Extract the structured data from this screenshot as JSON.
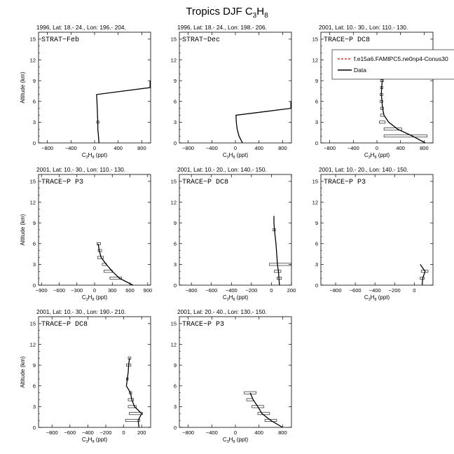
{
  "figure": {
    "title_main": "Tropics DJF C",
    "title_sub1": "3",
    "title_mid": "H",
    "title_sub2": "8"
  },
  "chart_data": [
    {
      "type": "line",
      "header": "1996, Lat: 18.- 24., Lon: 196.- 204.",
      "campaign": "STRAT−Feb",
      "xlabel": "C3H8 (ppt)",
      "ylabel": "Altitude (km)",
      "xlim": [
        -950,
        950
      ],
      "ylim": [
        0,
        16
      ],
      "xticks": [
        -800,
        -400,
        0,
        400,
        800
      ],
      "yticks": [
        0,
        3,
        6,
        9,
        12,
        15
      ],
      "series": [
        {
          "values": [
            [
              75,
              0
            ],
            [
              70,
              0.5
            ],
            [
              65,
              1
            ],
            [
              60,
              1.5
            ],
            [
              55,
              2
            ],
            [
              55,
              3
            ],
            [
              50,
              4
            ],
            [
              45,
              5
            ],
            [
              40,
              6
            ],
            [
              35,
              7
            ],
            [
              940,
              8
            ],
            [
              940,
              9
            ]
          ]
        }
      ],
      "errorbars": [
        {
          "y": 3,
          "low": 35,
          "high": 75
        }
      ]
    },
    {
      "type": "line",
      "header": "1996, Lat: 18.- 24., Lon: 198.- 206.",
      "campaign": "STRAT−Dec",
      "xlabel": "C3H8 (ppt)",
      "ylabel": "Altitude (km)",
      "xlim": [
        -950,
        950
      ],
      "ylim": [
        0,
        16
      ],
      "xticks": [
        -800,
        -400,
        0,
        400,
        800
      ],
      "yticks": [
        0,
        3,
        6,
        9,
        12,
        15
      ],
      "series": [
        {
          "values": [
            [
              120,
              0
            ],
            [
              90,
              0.5
            ],
            [
              60,
              1
            ],
            [
              30,
              2
            ],
            [
              15,
              3
            ],
            [
              10,
              4
            ],
            [
              940,
              5
            ],
            [
              940,
              6
            ]
          ]
        }
      ],
      "errorbars": []
    },
    {
      "type": "line",
      "header": "2001, Lat: 10.- 30., Lon: 110.- 130.",
      "campaign": "TRACE−P  DC8",
      "xlabel": "C3H8 (ppt)",
      "ylabel": "Altitude (km)",
      "xlim": [
        -950,
        950
      ],
      "ylim": [
        0,
        16
      ],
      "xticks": [
        -800,
        -400,
        0,
        400,
        800
      ],
      "yticks": [
        0,
        3,
        6,
        9,
        12,
        15
      ],
      "legend": {
        "position": "top-right",
        "entries": [
          {
            "label": "f.e15a6.FAMIPC5.ne0np4-Conus30",
            "color": "#e8322a",
            "dash": true
          },
          {
            "label": "Data",
            "color": "#000000",
            "dash": false
          }
        ]
      },
      "series": [
        {
          "values": [
            [
              820,
              0
            ],
            [
              600,
              1
            ],
            [
              350,
              2
            ],
            [
              200,
              3
            ],
            [
              120,
              4
            ],
            [
              95,
              5
            ],
            [
              85,
              6
            ],
            [
              75,
              7
            ],
            [
              80,
              8
            ],
            [
              90,
              9
            ],
            [
              70,
              10
            ]
          ]
        }
      ],
      "errorbars": [
        {
          "y": 1,
          "low": 120,
          "high": 850
        },
        {
          "y": 2,
          "low": 120,
          "high": 420
        },
        {
          "y": 3,
          "low": 40,
          "high": 140
        },
        {
          "y": 4,
          "low": 60,
          "high": 120
        },
        {
          "y": 5,
          "low": 60,
          "high": 110
        },
        {
          "y": 6,
          "low": 55,
          "high": 100
        },
        {
          "y": 7,
          "low": 55,
          "high": 100
        },
        {
          "y": 8,
          "low": 60,
          "high": 100
        },
        {
          "y": 9,
          "low": 60,
          "high": 110
        },
        {
          "y": 10,
          "low": 40,
          "high": 110
        }
      ]
    },
    {
      "type": "line",
      "header": "2001, Lat: 10.- 30., Lon: 110.- 130.",
      "campaign": "TRACE−P  P3",
      "xlabel": "C3H8 (ppt)",
      "ylabel": "Altitude (km)",
      "xlim": [
        -950,
        950
      ],
      "ylim": [
        0,
        16
      ],
      "xticks": [
        -900,
        -600,
        -300,
        0,
        300,
        600,
        900
      ],
      "yticks": [
        0,
        3,
        6,
        9,
        12,
        15
      ],
      "series": [
        {
          "values": [
            [
              650,
              0
            ],
            [
              420,
              1
            ],
            [
              300,
              2
            ],
            [
              200,
              3
            ],
            [
              110,
              4
            ],
            [
              80,
              5
            ],
            [
              60,
              6
            ]
          ]
        }
      ],
      "errorbars": [
        {
          "y": 1,
          "low": 260,
          "high": 460
        },
        {
          "y": 2,
          "low": 160,
          "high": 300
        },
        {
          "y": 3,
          "low": 130,
          "high": 200
        },
        {
          "y": 4,
          "low": 50,
          "high": 150
        },
        {
          "y": 5,
          "low": 60,
          "high": 120
        },
        {
          "y": 6,
          "low": 40,
          "high": 100
        }
      ]
    },
    {
      "type": "line",
      "header": "2001, Lat: 10.- 20., Lon: 140.- 150.",
      "campaign": "TRACE−P  DC8",
      "xlabel": "C3H8 (ppt)",
      "ylabel": "Altitude (km)",
      "xlim": [
        -920,
        200
      ],
      "ylim": [
        0,
        16
      ],
      "xticks": [
        -800,
        -600,
        -400,
        -200,
        0,
        200
      ],
      "yticks": [
        0,
        3,
        6,
        9,
        12,
        15
      ],
      "series": [
        {
          "values": [
            [
              80,
              0
            ],
            [
              75,
              1
            ],
            [
              70,
              2
            ],
            [
              60,
              3
            ],
            [
              50,
              5
            ],
            [
              45,
              6
            ],
            [
              30,
              8
            ],
            [
              25,
              9
            ],
            [
              25,
              10
            ]
          ]
        }
      ],
      "errorbars": [
        {
          "y": 1,
          "low": 55,
          "high": 100
        },
        {
          "y": 2,
          "low": 30,
          "high": 95
        },
        {
          "y": 3,
          "low": -20,
          "high": 200
        },
        {
          "y": 8,
          "low": 15,
          "high": 40
        }
      ]
    },
    {
      "type": "line",
      "header": "2001, Lat: 10.- 20., Lon: 140.- 150.",
      "campaign": "TRACE−P  P3",
      "xlabel": "C3H8 (ppt)",
      "ylabel": "Altitude (km)",
      "xlim": [
        -950,
        190
      ],
      "ylim": [
        0,
        16
      ],
      "xticks": [
        -800,
        -600,
        -400,
        -200,
        0
      ],
      "yticks": [
        0,
        3,
        6,
        9,
        12,
        15
      ],
      "series": [
        {
          "values": [
            [
              80,
              0
            ],
            [
              85,
              1
            ],
            [
              110,
              2
            ],
            [
              60,
              3
            ]
          ]
        }
      ],
      "errorbars": [
        {
          "y": 1,
          "low": 60,
          "high": 100
        },
        {
          "y": 2,
          "low": 70,
          "high": 140
        }
      ]
    },
    {
      "type": "line",
      "header": "2001, Lat: 10.- 30., Lon: 190.- 210.",
      "campaign": "TRACE−P  DC8",
      "xlabel": "C3H8 (ppt)",
      "ylabel": "Altitude (km)",
      "xlim": [
        -950,
        300
      ],
      "ylim": [
        0,
        16
      ],
      "xticks": [
        -800,
        -600,
        -400,
        -200,
        0,
        200
      ],
      "yticks": [
        0,
        3,
        6,
        9,
        12,
        15
      ],
      "series": [
        {
          "values": [
            [
              170,
              0
            ],
            [
              160,
              1
            ],
            [
              200,
              2
            ],
            [
              120,
              3
            ],
            [
              90,
              4
            ],
            [
              75,
              5
            ],
            [
              30,
              6
            ],
            [
              40,
              7
            ],
            [
              50,
              8
            ],
            [
              55,
              9
            ],
            [
              65,
              10
            ]
          ]
        }
      ],
      "errorbars": [
        {
          "y": 1,
          "low": 20,
          "high": 180
        },
        {
          "y": 2,
          "low": 60,
          "high": 210
        },
        {
          "y": 3,
          "low": 50,
          "high": 140
        },
        {
          "y": 4,
          "low": 50,
          "high": 110
        },
        {
          "y": 5,
          "low": 60,
          "high": 90
        },
        {
          "y": 7,
          "low": 30,
          "high": 50
        },
        {
          "y": 9,
          "low": 30,
          "high": 80
        },
        {
          "y": 10,
          "low": 50,
          "high": 80
        }
      ]
    },
    {
      "type": "line",
      "header": "2001, Lat: 20.- 40., Lon: 130.- 150.",
      "campaign": "TRACE−P  P3",
      "xlabel": "C3H8 (ppt)",
      "ylabel": "Altitude (km)",
      "xlim": [
        -950,
        950
      ],
      "ylim": [
        0,
        16
      ],
      "xticks": [
        -800,
        -400,
        0,
        400,
        800
      ],
      "yticks": [
        0,
        3,
        6,
        9,
        12,
        15
      ],
      "series": [
        {
          "values": [
            [
              800,
              0
            ],
            [
              600,
              1
            ],
            [
              450,
              2
            ],
            [
              380,
              3
            ],
            [
              300,
              4
            ],
            [
              250,
              5
            ]
          ]
        }
      ],
      "errorbars": [
        {
          "y": 1,
          "low": 500,
          "high": 700
        },
        {
          "y": 2,
          "low": 380,
          "high": 580
        },
        {
          "y": 3,
          "low": 280,
          "high": 480
        },
        {
          "y": 4,
          "low": 190,
          "high": 300
        },
        {
          "y": 5,
          "low": 150,
          "high": 350
        }
      ]
    }
  ]
}
